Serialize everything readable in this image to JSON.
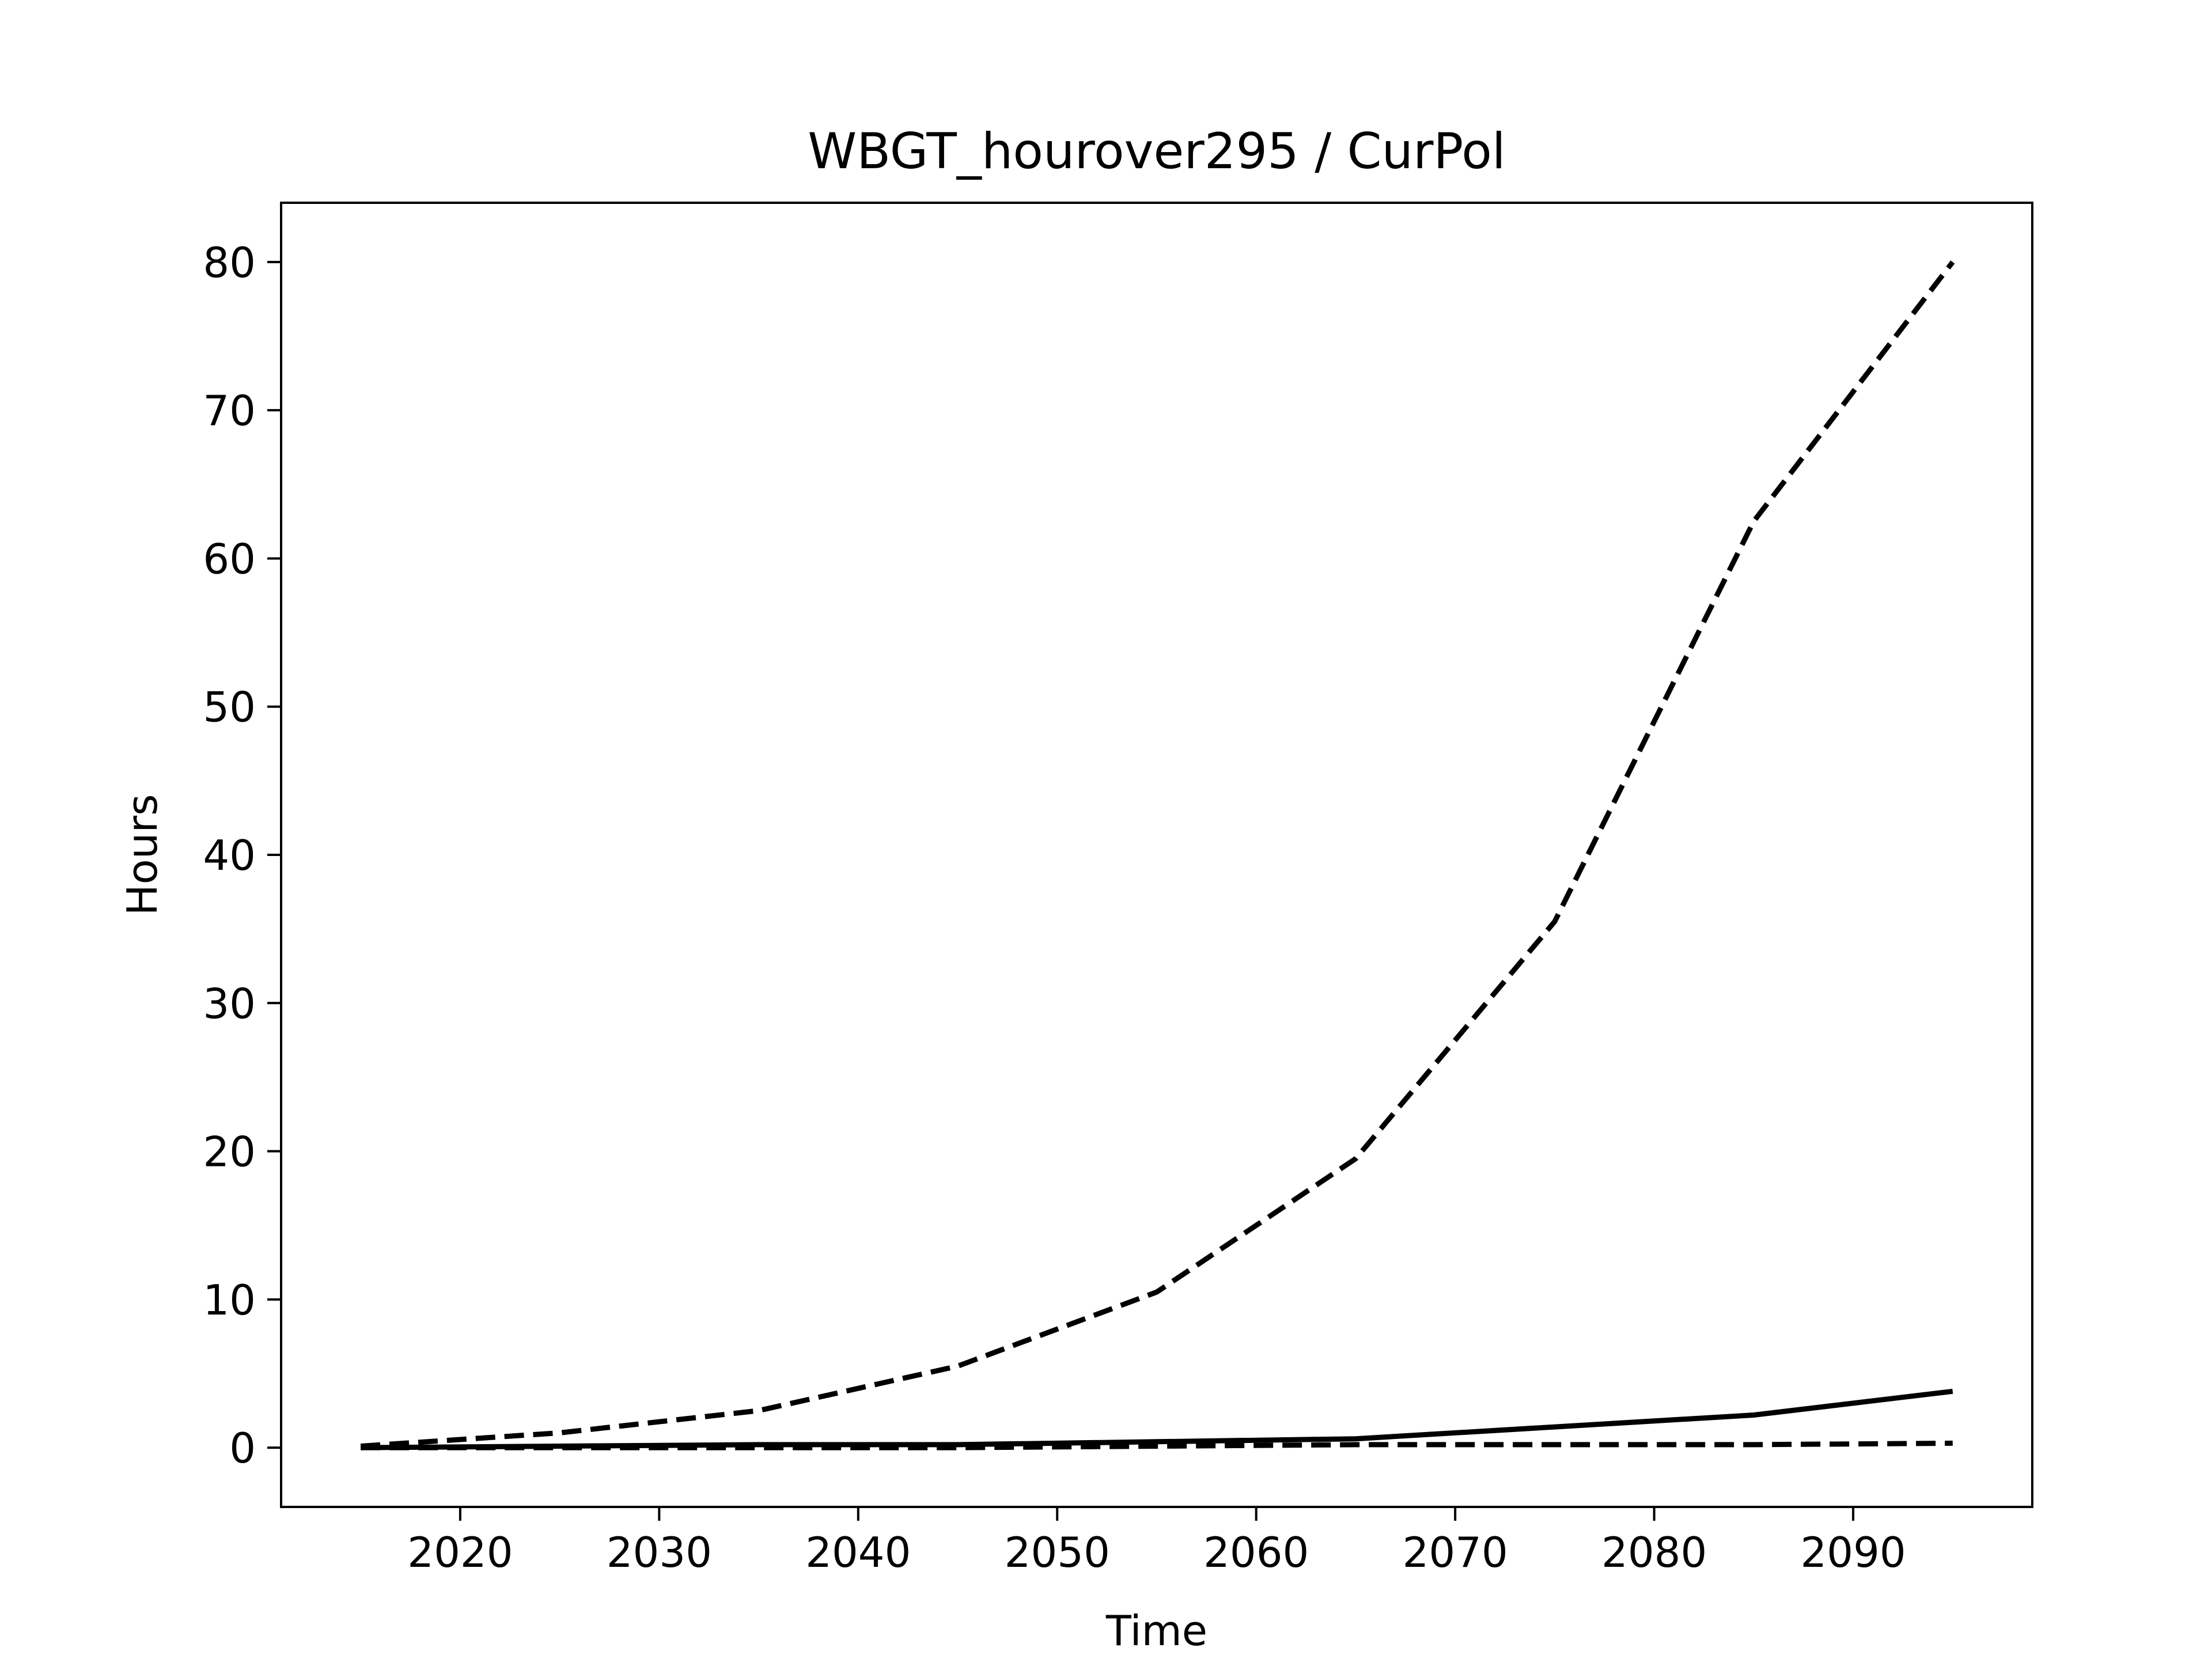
{
  "chart_data": {
    "type": "line",
    "title": "WBGT_hourover295 / CurPol",
    "xlabel": "Time",
    "ylabel": "Hours",
    "xlim": [
      2011,
      2099
    ],
    "ylim": [
      -4,
      84
    ],
    "xticks": [
      2020,
      2030,
      2040,
      2050,
      2060,
      2070,
      2080,
      2090
    ],
    "yticks": [
      0,
      10,
      20,
      30,
      40,
      50,
      60,
      70,
      80
    ],
    "grid": false,
    "legend": "none",
    "x": [
      2015,
      2025,
      2035,
      2045,
      2055,
      2065,
      2075,
      2085,
      2095
    ],
    "series": [
      {
        "style": "dashed",
        "color": "#000000",
        "values": [
          0.1,
          1.0,
          2.5,
          5.5,
          10.5,
          19.5,
          35.5,
          62.5,
          80.0
        ]
      },
      {
        "style": "solid",
        "color": "#000000",
        "values": [
          0.0,
          0.1,
          0.2,
          0.2,
          0.4,
          0.6,
          1.4,
          2.2,
          3.8
        ]
      },
      {
        "style": "dashed",
        "color": "#000000",
        "values": [
          0.0,
          0.0,
          0.0,
          0.0,
          0.1,
          0.2,
          0.2,
          0.2,
          0.3
        ]
      }
    ]
  }
}
